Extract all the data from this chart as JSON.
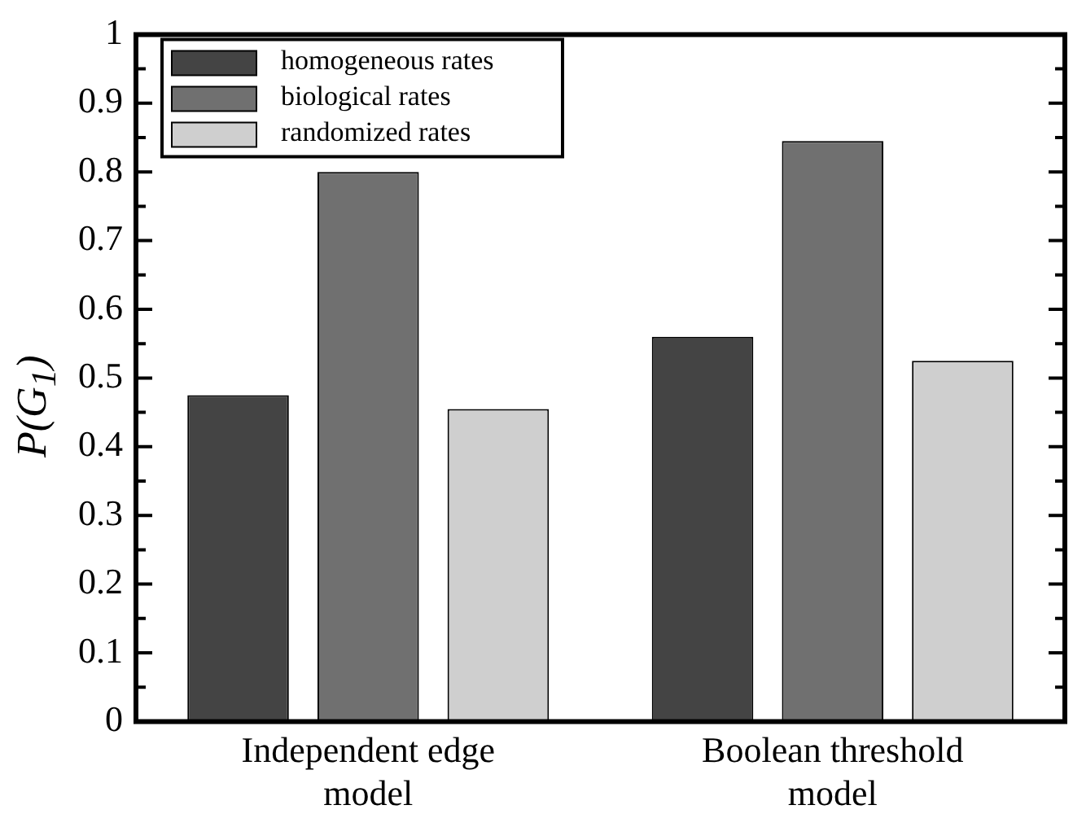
{
  "chart_data": {
    "type": "bar",
    "ylabel": "P(G$_{1}$)",
    "categories": [
      "Independent edge model",
      "Boolean threshold model"
    ],
    "series": [
      {
        "name": "homogeneous rates",
        "color": "#444444",
        "values": [
          0.475,
          0.56
        ]
      },
      {
        "name": "biological rates",
        "color": "#707070",
        "values": [
          0.8,
          0.845
        ]
      },
      {
        "name": "randomized rates",
        "color": "#cfcfcf",
        "values": [
          0.455,
          0.525
        ]
      }
    ],
    "ylim": [
      0,
      1
    ],
    "yticks": [
      0,
      {
        "value": 0.05,
        "label": null
      },
      0.1,
      {
        "value": 0.15,
        "label": null
      },
      0.2,
      {
        "value": 0.25,
        "label": null
      },
      0.3,
      {
        "value": 0.35,
        "label": null
      },
      0.4,
      {
        "value": 0.45,
        "label": null
      },
      0.5,
      {
        "value": 0.55,
        "label": null
      },
      0.6,
      {
        "value": 0.65,
        "label": null
      },
      0.7,
      {
        "value": 0.75,
        "label": null
      },
      0.8,
      {
        "value": 0.85,
        "label": null
      },
      0.9,
      {
        "value": 0.95,
        "label": null
      },
      1
    ],
    "grid": false,
    "legend": "top left"
  }
}
